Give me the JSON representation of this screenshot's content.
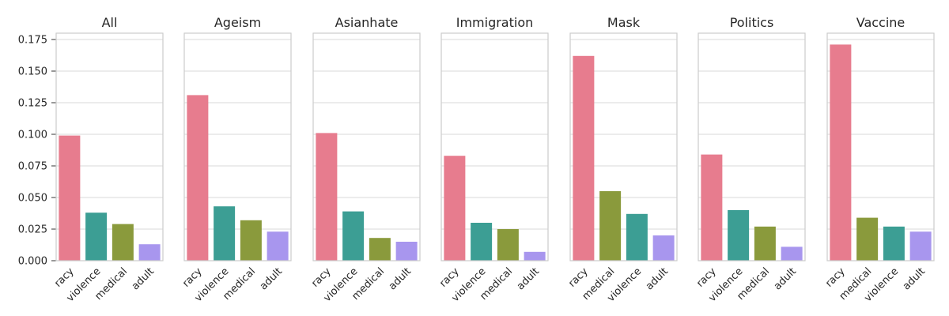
{
  "chart_data": [
    {
      "type": "bar",
      "title": "All",
      "categories": [
        "racy",
        "violence",
        "medical",
        "adult"
      ],
      "values": [
        0.099,
        0.038,
        0.029,
        0.013
      ],
      "ylim": [
        0,
        0.18
      ],
      "yticks": [
        "0.000",
        "0.025",
        "0.050",
        "0.075",
        "0.100",
        "0.125",
        "0.150",
        "0.175"
      ],
      "grid": true
    },
    {
      "type": "bar",
      "title": "Ageism",
      "categories": [
        "racy",
        "violence",
        "medical",
        "adult"
      ],
      "values": [
        0.131,
        0.043,
        0.032,
        0.023
      ],
      "ylim": [
        0,
        0.18
      ],
      "grid": true
    },
    {
      "type": "bar",
      "title": "Asianhate",
      "categories": [
        "racy",
        "violence",
        "medical",
        "adult"
      ],
      "values": [
        0.101,
        0.039,
        0.018,
        0.015
      ],
      "ylim": [
        0,
        0.18
      ],
      "grid": true
    },
    {
      "type": "bar",
      "title": "Immigration",
      "categories": [
        "racy",
        "violence",
        "medical",
        "adult"
      ],
      "values": [
        0.083,
        0.03,
        0.025,
        0.007
      ],
      "ylim": [
        0,
        0.18
      ],
      "grid": true
    },
    {
      "type": "bar",
      "title": "Mask",
      "categories": [
        "racy",
        "medical",
        "violence",
        "adult"
      ],
      "values": [
        0.162,
        0.055,
        0.037,
        0.02
      ],
      "ylim": [
        0,
        0.18
      ],
      "grid": true
    },
    {
      "type": "bar",
      "title": "Politics",
      "categories": [
        "racy",
        "violence",
        "medical",
        "adult"
      ],
      "values": [
        0.084,
        0.04,
        0.027,
        0.011
      ],
      "ylim": [
        0,
        0.18
      ],
      "grid": true
    },
    {
      "type": "bar",
      "title": "Vaccine",
      "categories": [
        "racy",
        "medical",
        "violence",
        "adult"
      ],
      "values": [
        0.171,
        0.034,
        0.027,
        0.023
      ],
      "ylim": [
        0,
        0.18
      ],
      "grid": true
    }
  ],
  "colors": {
    "racy": "#e77c8e",
    "violence": "#3c9e94",
    "medical": "#8a9a3c",
    "adult": "#a896ee"
  }
}
